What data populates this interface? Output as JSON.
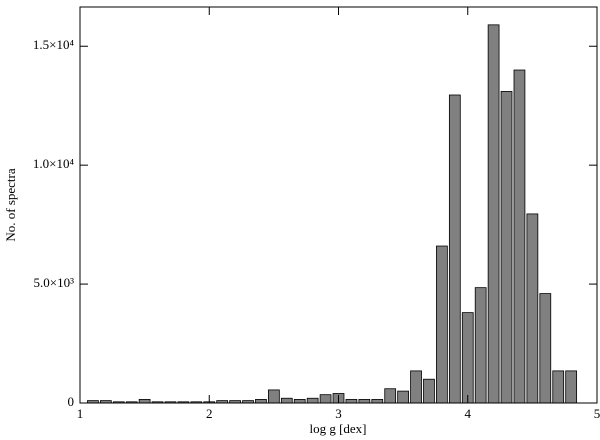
{
  "chart_data": {
    "type": "histogram",
    "xlabel": "log g [dex]",
    "ylabel": "No. of spectra",
    "bins": [
      1.05,
      1.15,
      1.25,
      1.35,
      1.45,
      1.55,
      1.65,
      1.75,
      1.85,
      1.95,
      2.05,
      2.15,
      2.25,
      2.35,
      2.45,
      2.55,
      2.65,
      2.75,
      2.85,
      2.95,
      3.05,
      3.15,
      3.25,
      3.35,
      3.45,
      3.55,
      3.65,
      3.75,
      3.85,
      3.95,
      4.05,
      4.15,
      4.25,
      4.35,
      4.45,
      4.55,
      4.65,
      4.75,
      4.85
    ],
    "counts": [
      100,
      100,
      50,
      50,
      150,
      50,
      50,
      50,
      50,
      50,
      100,
      100,
      100,
      150,
      550,
      200,
      150,
      200,
      350,
      400,
      150,
      150,
      150,
      600,
      500,
      1350,
      1000,
      6600,
      12950,
      3800,
      4850,
      15900,
      13100,
      14000,
      7950,
      4600,
      1350,
      1350
    ],
    "color": "#808080",
    "xlim": [
      1,
      5
    ],
    "xticks": [
      1,
      2,
      3,
      4,
      5
    ],
    "ylim": [
      0,
      16650
    ],
    "yticks": [
      {
        "value": 0,
        "label": "0"
      },
      {
        "value": 5000,
        "label": "5.0×10³"
      },
      {
        "value": 10000,
        "label": "1.0×10⁴"
      },
      {
        "value": 15000,
        "label": "1.5×10⁴"
      }
    ]
  }
}
